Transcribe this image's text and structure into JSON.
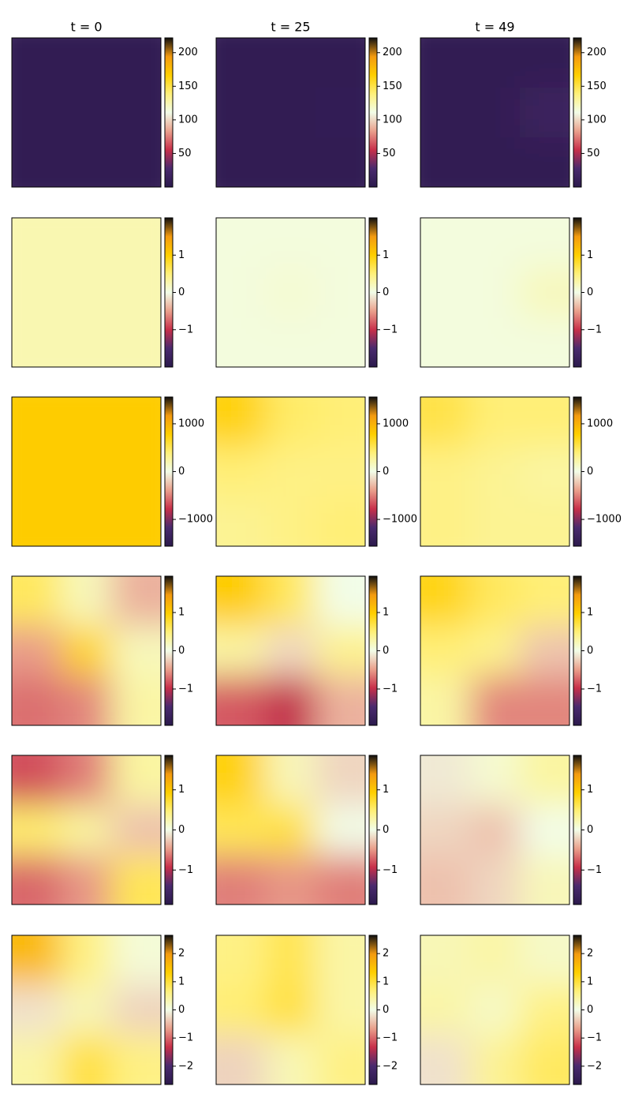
{
  "colormap": [
    "#2b1a4c",
    "#4a2a6e",
    "#c8304a",
    "#eaa08c",
    "#f2fde8",
    "#fff07a",
    "#ffcf00",
    "#f39a10",
    "#101010"
  ],
  "chart_data": [
    {
      "type": "heatmap",
      "title": "t = 0",
      "z": [
        [
          5,
          5,
          5
        ],
        [
          5,
          5,
          5
        ],
        [
          5,
          5,
          5
        ]
      ],
      "clim": [
        0,
        222
      ],
      "cticks": [
        50,
        100,
        150,
        200
      ]
    },
    {
      "type": "heatmap",
      "title": "t = 25",
      "z": [
        [
          5,
          5,
          5
        ],
        [
          5,
          5,
          7
        ],
        [
          5,
          5,
          5
        ]
      ],
      "clim": [
        0,
        222
      ],
      "cticks": [
        50,
        100,
        150,
        200
      ]
    },
    {
      "type": "heatmap",
      "title": "t = 49",
      "z": [
        [
          5,
          5,
          5
        ],
        [
          5,
          5,
          15
        ],
        [
          5,
          5,
          5
        ]
      ],
      "clim": [
        0,
        222
      ],
      "cticks": [
        50,
        100,
        150,
        200
      ]
    },
    {
      "type": "heatmap",
      "z": [
        [
          0.25,
          0.25,
          0.25
        ],
        [
          0.25,
          0.25,
          0.25
        ],
        [
          0.25,
          0.25,
          0.25
        ]
      ],
      "clim": [
        -2,
        2
      ],
      "cticks": [
        {
          "value": -1,
          "label": "−1"
        },
        0,
        1
      ]
    },
    {
      "type": "heatmap",
      "z": [
        [
          0.05,
          0.05,
          0.05
        ],
        [
          0.05,
          0.1,
          0.05
        ],
        [
          0.05,
          0.05,
          0.05
        ]
      ],
      "clim": [
        -2,
        2
      ],
      "cticks": [
        {
          "value": -1,
          "label": "−1"
        },
        0,
        1
      ]
    },
    {
      "type": "heatmap",
      "z": [
        [
          0.05,
          0.05,
          0.05
        ],
        [
          0.05,
          0.05,
          0.2
        ],
        [
          0.05,
          0.05,
          0.05
        ]
      ],
      "clim": [
        -2,
        2
      ],
      "cticks": [
        {
          "value": -1,
          "label": "−1"
        },
        0,
        1
      ]
    },
    {
      "type": "heatmap",
      "z": [
        [
          800,
          800,
          800
        ],
        [
          800,
          800,
          800
        ],
        [
          800,
          800,
          800
        ]
      ],
      "clim": [
        -1560,
        1560
      ],
      "cticks": [
        {
          "value": -1000,
          "label": "−1000"
        },
        0,
        1000
      ]
    },
    {
      "type": "heatmap",
      "z": [
        [
          750,
          450,
          400
        ],
        [
          400,
          350,
          350
        ],
        [
          300,
          350,
          400
        ]
      ],
      "clim": [
        -1560,
        1560
      ],
      "cticks": [
        {
          "value": -1000,
          "label": "−1000"
        },
        0,
        1000
      ]
    },
    {
      "type": "heatmap",
      "z": [
        [
          550,
          400,
          400
        ],
        [
          350,
          300,
          250
        ],
        [
          350,
          300,
          300
        ]
      ],
      "clim": [
        -1560,
        1560
      ],
      "cticks": [
        {
          "value": -1000,
          "label": "−1000"
        },
        0,
        1000
      ]
    },
    {
      "type": "heatmap",
      "z": [
        [
          0.6,
          0.2,
          -0.4
        ],
        [
          -0.5,
          0.9,
          0.2
        ],
        [
          -0.7,
          -0.6,
          0.3
        ]
      ],
      "clim": [
        -1.95,
        1.95
      ],
      "cticks": [
        {
          "value": -1,
          "label": "−1"
        },
        0,
        1
      ]
    },
    {
      "type": "heatmap",
      "z": [
        [
          1.0,
          0.6,
          0.0
        ],
        [
          0.3,
          -0.2,
          0.4
        ],
        [
          -0.8,
          -1.0,
          -0.4
        ]
      ],
      "clim": [
        -1.95,
        1.95
      ],
      "cticks": [
        {
          "value": -1,
          "label": "−1"
        },
        0,
        1
      ]
    },
    {
      "type": "heatmap",
      "z": [
        [
          0.9,
          0.6,
          0.5
        ],
        [
          0.5,
          0.4,
          -0.3
        ],
        [
          0.3,
          -0.6,
          -0.6
        ]
      ],
      "clim": [
        -1.95,
        1.95
      ],
      "cticks": [
        {
          "value": -1,
          "label": "−1"
        },
        0,
        1
      ]
    },
    {
      "type": "heatmap",
      "z": [
        [
          -0.8,
          -0.6,
          0.3
        ],
        [
          0.5,
          0.3,
          -0.3
        ],
        [
          -0.7,
          -0.5,
          0.6
        ]
      ],
      "clim": [
        -1.86,
        1.86
      ],
      "cticks": [
        {
          "value": -1,
          "label": "−1"
        },
        0,
        1
      ]
    },
    {
      "type": "heatmap",
      "z": [
        [
          0.9,
          0.2,
          -0.2
        ],
        [
          0.6,
          0.7,
          0.0
        ],
        [
          -0.6,
          -0.5,
          -0.6
        ]
      ],
      "clim": [
        -1.86,
        1.86
      ],
      "cticks": [
        {
          "value": -1,
          "label": "−1"
        },
        0,
        1
      ]
    },
    {
      "type": "heatmap",
      "z": [
        [
          -0.1,
          0.1,
          0.3
        ],
        [
          -0.2,
          -0.3,
          0.0
        ],
        [
          -0.3,
          -0.2,
          0.2
        ]
      ],
      "clim": [
        -1.86,
        1.86
      ],
      "cticks": [
        {
          "value": -1,
          "label": "−1"
        },
        0,
        1
      ]
    },
    {
      "type": "heatmap",
      "z": [
        [
          1.6,
          0.6,
          0.1
        ],
        [
          -0.2,
          0.3,
          -0.3
        ],
        [
          0.4,
          1.0,
          0.6
        ]
      ],
      "clim": [
        -2.65,
        2.65
      ],
      "cticks": [
        {
          "value": -2,
          "label": "−2"
        },
        {
          "value": -1,
          "label": "−1"
        },
        0,
        1,
        2
      ]
    },
    {
      "type": "heatmap",
      "z": [
        [
          0.6,
          0.9,
          0.4
        ],
        [
          0.7,
          1.0,
          0.4
        ],
        [
          -0.3,
          0.3,
          0.6
        ]
      ],
      "clim": [
        -2.65,
        2.65
      ],
      "cticks": [
        {
          "value": -2,
          "label": "−2"
        },
        {
          "value": -1,
          "label": "−1"
        },
        0,
        1,
        2
      ]
    },
    {
      "type": "heatmap",
      "z": [
        [
          0.3,
          0.4,
          0.2
        ],
        [
          0.4,
          0.2,
          0.6
        ],
        [
          -0.2,
          0.5,
          0.8
        ]
      ],
      "clim": [
        -2.65,
        2.65
      ],
      "cticks": [
        {
          "value": -2,
          "label": "−2"
        },
        {
          "value": -1,
          "label": "−1"
        },
        0,
        1,
        2
      ]
    }
  ]
}
